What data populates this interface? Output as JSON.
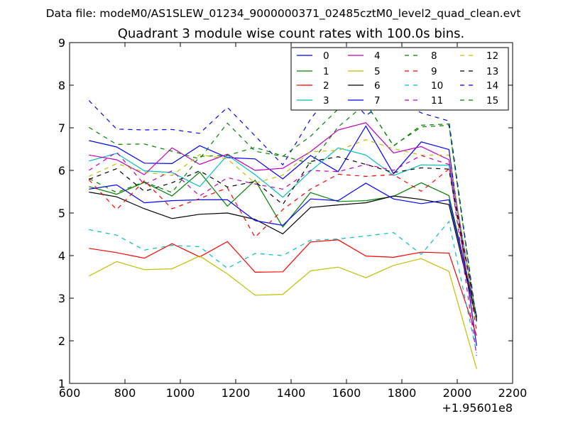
{
  "chart_data": {
    "type": "line",
    "suptitle": "Data file: modeM0/AS1SLEW_01234_9000000371_02485cztM0_level2_quad_clean.evt",
    "title": "Quadrant 3 module wise count rates with 100.0s bins.",
    "xlabel": "",
    "ylabel": "",
    "x_offset_label": "+1.95601e8",
    "xlim": [
      600,
      2200
    ],
    "ylim": [
      1,
      9
    ],
    "x_ticks": [
      "600",
      "800",
      "1000",
      "1200",
      "1400",
      "1600",
      "1800",
      "2000",
      "2200"
    ],
    "y_ticks": [
      "1",
      "2",
      "3",
      "4",
      "5",
      "6",
      "7",
      "8",
      "9"
    ],
    "legend_position": "top-right",
    "x": [
      670,
      770,
      870,
      970,
      1070,
      1170,
      1270,
      1370,
      1470,
      1570,
      1670,
      1770,
      1870,
      1970,
      2070
    ],
    "series": [
      {
        "name": "0",
        "color": "#0000ff",
        "dash": "solid",
        "values": [
          6.7,
          6.55,
          6.17,
          6.16,
          6.58,
          6.3,
          6.27,
          5.8,
          6.35,
          5.97,
          7.04,
          5.92,
          6.67,
          6.49,
          1.88
        ]
      },
      {
        "name": "1",
        "color": "#008000",
        "dash": "solid",
        "values": [
          5.62,
          5.44,
          5.72,
          5.4,
          5.96,
          5.16,
          5.77,
          4.67,
          5.48,
          5.27,
          5.29,
          5.39,
          5.71,
          5.41,
          2.57
        ]
      },
      {
        "name": "2",
        "color": "#ff0000",
        "dash": "solid",
        "values": [
          4.17,
          4.07,
          3.94,
          4.28,
          3.97,
          4.33,
          3.61,
          3.62,
          4.32,
          4.37,
          3.99,
          3.96,
          4.08,
          4.06,
          2.12
        ]
      },
      {
        "name": "3",
        "color": "#00bfbf",
        "dash": "solid",
        "values": [
          6.22,
          6.4,
          5.99,
          5.95,
          5.62,
          6.36,
          5.9,
          5.37,
          5.98,
          6.53,
          6.36,
          5.88,
          6.13,
          6.12,
          2.53
        ]
      },
      {
        "name": "4",
        "color": "#bf00bf",
        "dash": "solid",
        "values": [
          6.36,
          6.25,
          5.9,
          6.53,
          6.14,
          6.38,
          6.0,
          6.05,
          6.44,
          6.95,
          7.12,
          6.41,
          6.56,
          6.25,
          2.51
        ]
      },
      {
        "name": "5",
        "color": "#bfbf00",
        "dash": "solid",
        "values": [
          3.52,
          3.86,
          3.67,
          3.69,
          3.99,
          3.57,
          3.07,
          3.09,
          3.64,
          3.73,
          3.48,
          3.77,
          3.93,
          3.63,
          1.34
        ]
      },
      {
        "name": "6",
        "color": "#000000",
        "dash": "solid",
        "values": [
          5.49,
          5.38,
          5.1,
          4.87,
          4.97,
          5.0,
          4.85,
          4.51,
          5.13,
          5.19,
          5.24,
          5.4,
          5.32,
          5.2,
          2.48
        ]
      },
      {
        "name": "7",
        "color": "#0000ff",
        "dash": "solid",
        "values": [
          5.56,
          5.66,
          5.24,
          5.29,
          5.31,
          5.31,
          4.82,
          4.71,
          5.33,
          5.29,
          5.7,
          5.33,
          5.22,
          5.31,
          2.58
        ]
      },
      {
        "name": "8",
        "color": "#008000",
        "dash": "dashed",
        "values": [
          5.81,
          5.48,
          5.73,
          5.48,
          6.33,
          6.35,
          6.54,
          6.34,
          6.16,
          7.02,
          7.57,
          6.58,
          7.02,
          7.06,
          2.45
        ]
      },
      {
        "name": "9",
        "color": "#ff0000",
        "dash": "dashed",
        "values": [
          5.78,
          5.08,
          5.76,
          5.1,
          5.34,
          5.59,
          4.43,
          5.08,
          5.56,
          5.91,
          5.86,
          5.9,
          5.51,
          6.03,
          2.23
        ]
      },
      {
        "name": "10",
        "color": "#00bfbf",
        "dash": "dashed",
        "values": [
          4.61,
          4.48,
          4.13,
          4.24,
          4.21,
          3.7,
          4.05,
          4.0,
          4.36,
          4.39,
          4.46,
          4.54,
          4.03,
          4.8,
          1.71
        ]
      },
      {
        "name": "11",
        "color": "#bf00bf",
        "dash": "dashed",
        "values": [
          6.0,
          6.43,
          5.67,
          5.99,
          5.4,
          5.83,
          5.68,
          5.56,
          6.0,
          5.97,
          6.14,
          6.0,
          6.35,
          6.14,
          1.65
        ]
      },
      {
        "name": "12",
        "color": "#bfbf00",
        "dash": "dashed",
        "values": [
          5.86,
          6.16,
          5.96,
          5.88,
          6.37,
          6.27,
          5.7,
          5.89,
          6.44,
          6.47,
          6.72,
          6.51,
          6.36,
          6.36,
          2.45
        ]
      },
      {
        "name": "13",
        "color": "#000000",
        "dash": "dashed",
        "values": [
          5.79,
          6.04,
          5.51,
          5.71,
          5.99,
          5.61,
          5.74,
          5.2,
          6.21,
          6.32,
          6.14,
          5.95,
          6.06,
          6.03,
          2.55
        ]
      },
      {
        "name": "14",
        "color": "#0000ff",
        "dash": "dashed",
        "values": [
          7.64,
          6.97,
          6.95,
          6.96,
          6.87,
          7.48,
          6.81,
          6.13,
          7.2,
          8.03,
          7.29,
          7.71,
          7.35,
          7.16,
          2.46
        ]
      },
      {
        "name": "15",
        "color": "#008000",
        "dash": "dashed",
        "values": [
          7.01,
          6.61,
          6.62,
          6.45,
          6.27,
          7.11,
          6.45,
          6.33,
          6.8,
          7.44,
          7.58,
          6.57,
          7.06,
          7.09,
          2.41
        ]
      }
    ]
  }
}
